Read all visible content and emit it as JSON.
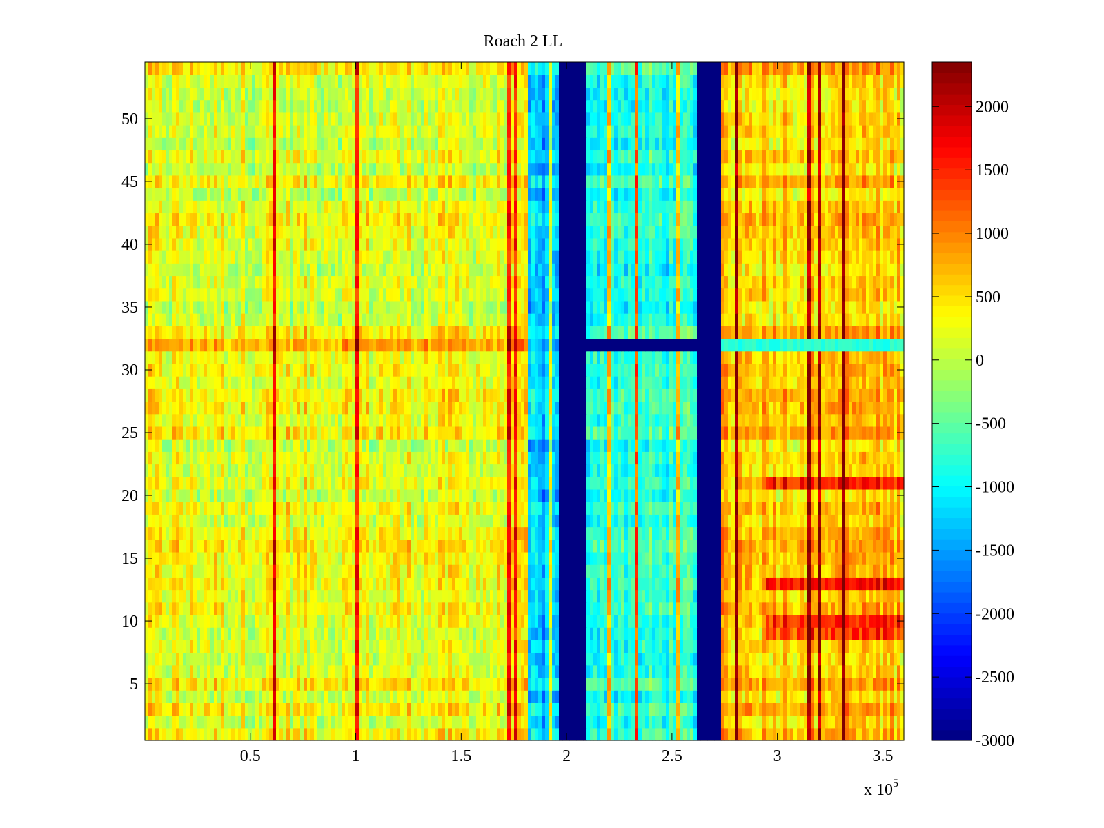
{
  "chart_data": {
    "type": "heatmap",
    "title": "Roach 2 LL",
    "xlabel": "",
    "ylabel": "",
    "x_exponent_label": "x 10",
    "x_exponent_power": "5",
    "xlim": [
      0,
      3.6
    ],
    "ylim": [
      0.5,
      54.5
    ],
    "xticks": [
      0.5,
      1,
      1.5,
      2,
      2.5,
      3,
      3.5
    ],
    "xtick_labels": [
      "0.5",
      "1",
      "1.5",
      "2",
      "2.5",
      "3",
      "3.5"
    ],
    "yticks": [
      5,
      10,
      15,
      20,
      25,
      30,
      35,
      40,
      45,
      50
    ],
    "ytick_labels": [
      "5",
      "10",
      "15",
      "20",
      "25",
      "30",
      "35",
      "40",
      "45",
      "50"
    ],
    "colormap": "jet",
    "clim": [
      -3000,
      2350
    ],
    "colorbar_ticks": [
      2000,
      1500,
      1000,
      500,
      0,
      -500,
      -1000,
      -1500,
      -2000,
      -2500,
      -3000
    ],
    "colorbar_tick_labels": [
      "2000",
      "1500",
      "1000",
      "500",
      "0",
      "-500",
      "-1000",
      "-1500",
      "-2000",
      "-2500",
      "-3000"
    ],
    "grid": false,
    "regions": [
      {
        "x_range": [
          0,
          1.82
        ],
        "mean_value": 250,
        "description": "yellow-green band"
      },
      {
        "x_range": [
          1.82,
          1.97
        ],
        "mean_value": -1300,
        "description": "cyan band"
      },
      {
        "x_range": [
          1.97,
          2.09
        ],
        "mean_value": -3000,
        "description": "saturated low band"
      },
      {
        "x_range": [
          2.09,
          2.62
        ],
        "mean_value": -750,
        "description": "cyan-green band"
      },
      {
        "x_range": [
          2.62,
          2.74
        ],
        "mean_value": -3000,
        "description": "saturated low band"
      },
      {
        "x_range": [
          2.74,
          3.6
        ],
        "mean_value": 650,
        "description": "orange band"
      }
    ],
    "highlighted_rows": [
      {
        "row": 32,
        "note": "row 32 elevated on the left, saturated low between 2.1 and 2.74"
      },
      {
        "row": 9,
        "note": "high values on the right"
      },
      {
        "row": 10,
        "note": "high values on the right"
      },
      {
        "row": 21,
        "note": "high values on the right"
      }
    ]
  }
}
